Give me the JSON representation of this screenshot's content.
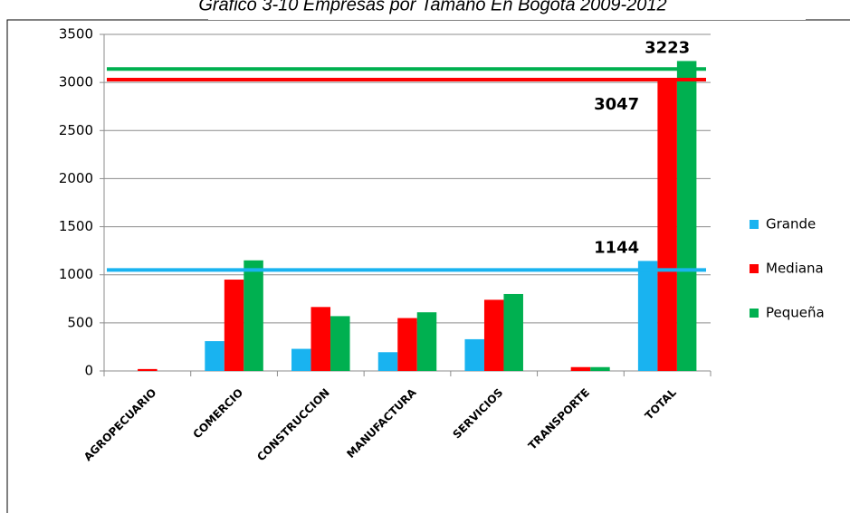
{
  "chart_data": {
    "type": "bar",
    "title": "Grafico 3-10 Empresas por Tamaño En Bogotá 2009-2012",
    "categories": [
      "AGROPECUARIO",
      "COMERCIO",
      "CONSTRUCCION",
      "MANUFACTURA",
      "SERVICIOS",
      "TRANSPORTE",
      "TOTAL"
    ],
    "series": [
      {
        "name": "Grande",
        "color": "#19b3f0",
        "values": [
          0,
          310,
          230,
          195,
          330,
          0,
          1144
        ]
      },
      {
        "name": "Mediana",
        "color": "#ff0000",
        "values": [
          20,
          950,
          665,
          550,
          740,
          40,
          3047
        ]
      },
      {
        "name": "Pequeña",
        "color": "#00b050",
        "values": [
          0,
          1150,
          570,
          610,
          800,
          40,
          3223
        ]
      }
    ],
    "reference_lines": [
      {
        "color": "#19b3f0",
        "value": 1050
      },
      {
        "color": "#ff0000",
        "value": 3030
      },
      {
        "color": "#00b050",
        "value": 3140
      }
    ],
    "label_last": true,
    "ylim": [
      0,
      3500
    ],
    "yticks": [
      0,
      500,
      1000,
      1500,
      2000,
      2500,
      3000,
      3500
    ],
    "grid": true,
    "legend": "right"
  }
}
